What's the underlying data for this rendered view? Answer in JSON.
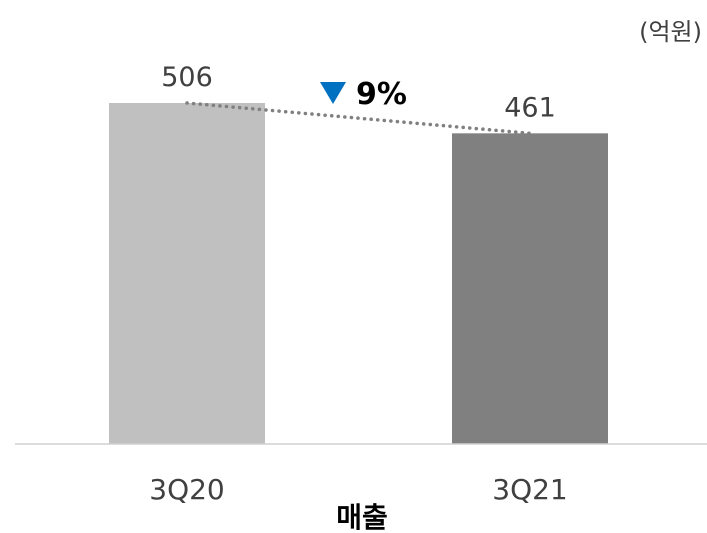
{
  "chart_data": {
    "type": "bar",
    "unit": "(억원)",
    "categories": [
      "3Q20",
      "3Q21"
    ],
    "values": [
      506,
      461
    ],
    "value_labels": [
      "506",
      "461"
    ],
    "colors": [
      "#c0c0c0",
      "#808080"
    ],
    "xlabel": "매출",
    "ylim": [
      0,
      506
    ],
    "change": {
      "direction": "down",
      "label": "9%",
      "color": "#0070c0"
    },
    "trend_line": {
      "style": "dotted",
      "color": "#808080"
    }
  }
}
